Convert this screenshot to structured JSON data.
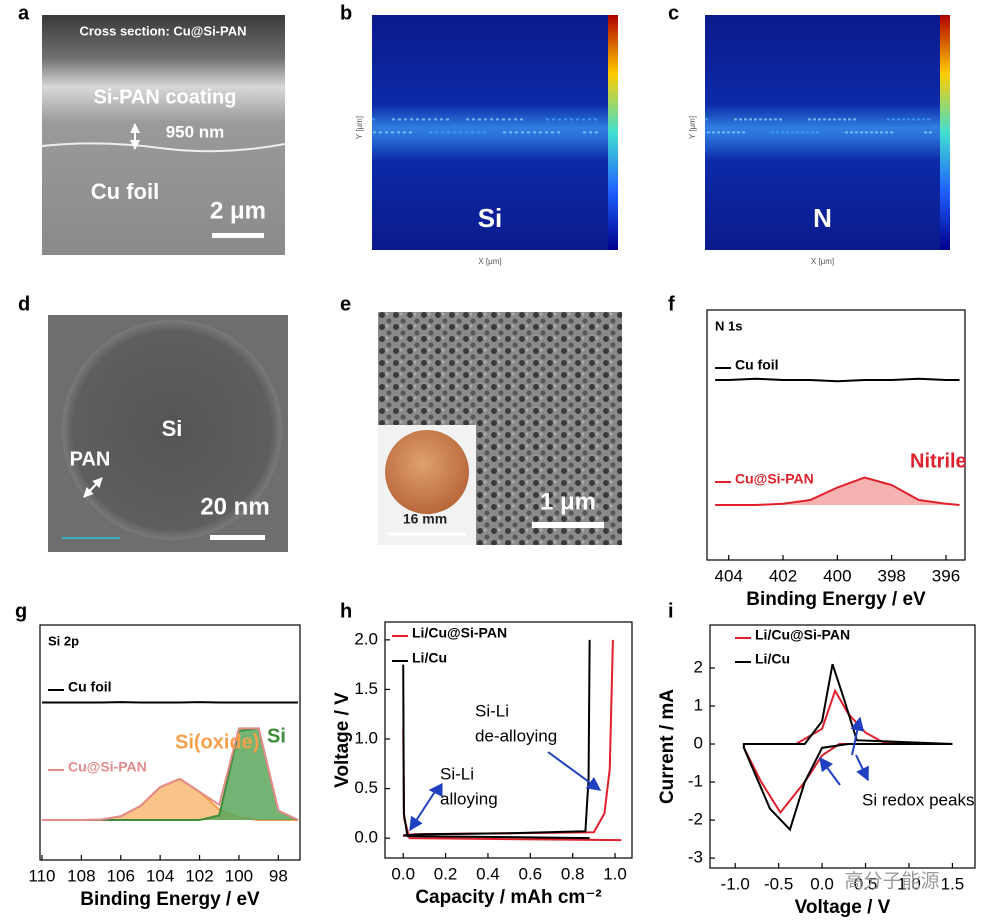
{
  "chart_data": [
    {
      "type": "image",
      "panel": "a",
      "labels": [
        "Cross section: Cu@Si-PAN",
        "Si-PAN coating",
        "950 nm",
        "Cu foil",
        "2 μm"
      ]
    },
    {
      "type": "heatmap",
      "panel": "b",
      "label": "Si",
      "xlabel": "X [μm]",
      "ylabel": "Y [μm]"
    },
    {
      "type": "heatmap",
      "panel": "c",
      "label": "N",
      "xlabel": "X [μm]",
      "ylabel": "Y [μm]"
    },
    {
      "type": "image",
      "panel": "d",
      "labels": [
        "Si",
        "PAN",
        "20 nm"
      ]
    },
    {
      "type": "image",
      "panel": "e",
      "labels": [
        "16 mm",
        "1 μm"
      ]
    },
    {
      "type": "line",
      "panel": "f",
      "title": "N 1s",
      "xlabel": "Binding Energy / eV",
      "xlim": [
        404.8,
        395.3
      ],
      "xticks": [
        404,
        402,
        400,
        398,
        396
      ],
      "ylim": [
        0,
        10
      ],
      "series": [
        {
          "name": "Cu foil",
          "color": "#000000",
          "x": [
            404.5,
            404,
            403,
            402,
            401,
            400,
            399,
            398,
            397,
            396,
            395.5
          ],
          "values": [
            7.2,
            7.2,
            7.25,
            7.2,
            7.2,
            7.15,
            7.2,
            7.2,
            7.25,
            7.2,
            7.2
          ]
        },
        {
          "name": "Cu@Si-PAN",
          "color": "#e0202a",
          "fill": "#f5a3a3",
          "x": [
            404.5,
            404,
            403,
            402,
            401,
            400,
            399,
            398,
            397,
            396,
            395.5
          ],
          "values": [
            2.2,
            2.2,
            2.2,
            2.25,
            2.4,
            2.9,
            3.3,
            3.0,
            2.4,
            2.25,
            2.2
          ]
        }
      ],
      "annotations": [
        [
          "Nitrile"
        ]
      ]
    },
    {
      "type": "line",
      "panel": "g",
      "title": "Si 2p",
      "xlabel": "Binding Energy / eV",
      "xlim": [
        110.1,
        96.9
      ],
      "xticks": [
        110,
        108,
        106,
        104,
        102,
        100,
        98
      ],
      "ylim": [
        0,
        10
      ],
      "series": [
        {
          "name": "Cu foil",
          "color": "#000000",
          "x": [
            110,
            109,
            108,
            107,
            106,
            105,
            104,
            103,
            102,
            101,
            100,
            99,
            98,
            97
          ],
          "values": [
            6.7,
            6.7,
            6.7,
            6.7,
            6.72,
            6.7,
            6.7,
            6.7,
            6.72,
            6.7,
            6.7,
            6.7,
            6.7,
            6.7
          ]
        },
        {
          "name": "Si(oxide)",
          "color": "#f5a04a",
          "fill": "#f9b873",
          "x": [
            110,
            109,
            108,
            107,
            106,
            105,
            104,
            103,
            102,
            101,
            100,
            99,
            98,
            97
          ],
          "values": [
            1.7,
            1.7,
            1.7,
            1.72,
            1.86,
            2.3,
            3.1,
            3.45,
            2.9,
            2.15,
            1.8,
            1.7,
            1.7,
            1.7
          ]
        },
        {
          "name": "Si",
          "color": "#3d8c3a",
          "fill": "#5aa65a",
          "x": [
            110,
            109,
            108,
            107,
            106,
            105,
            104,
            103,
            102,
            101,
            100,
            99,
            98,
            97
          ],
          "values": [
            1.7,
            1.7,
            1.7,
            1.7,
            1.7,
            1.7,
            1.7,
            1.7,
            1.7,
            1.9,
            5.5,
            5.6,
            2.1,
            1.7
          ]
        },
        {
          "name": "Cu@Si-PAN",
          "color": "#e58a8a",
          "x": [
            110,
            109,
            108,
            107,
            106,
            105,
            104,
            103,
            102,
            101,
            100,
            99,
            98,
            97
          ],
          "values": [
            1.7,
            1.7,
            1.7,
            1.72,
            1.86,
            2.3,
            3.1,
            3.45,
            2.9,
            2.35,
            5.6,
            5.6,
            2.1,
            1.7
          ]
        }
      ]
    },
    {
      "type": "line",
      "panel": "h",
      "xlabel": "Capacity / mAh cm⁻²",
      "ylabel": "Voltage / V",
      "xlim": [
        -0.086,
        1.08
      ],
      "ylim": [
        -0.2,
        2.18
      ],
      "xticks": [
        {
          "value": 0,
          "label": "0.0"
        },
        0.2,
        0.4,
        0.6,
        0.8,
        {
          "value": 1,
          "label": "1.0"
        }
      ],
      "yticks": [
        {
          "value": 0,
          "label": "0.0"
        },
        0.5,
        {
          "value": 1,
          "label": "1.0"
        },
        1.5,
        {
          "value": 2,
          "label": "2.0"
        }
      ],
      "series": [
        {
          "name": "Li/Cu@Si-PAN",
          "color": "#e0202a",
          "x": [
            0,
            0.004,
            0.03,
            0.5,
            1.03,
            null,
            0,
            0.05,
            0.5,
            0.9,
            0.95,
            0.975,
            0.99
          ],
          "values": [
            1.1,
            0.2,
            0.0,
            -0.01,
            -0.02,
            null,
            0.02,
            0.04,
            0.05,
            0.06,
            0.25,
            0.7,
            2.0
          ]
        },
        {
          "name": "Li/Cu",
          "color": "#000000",
          "x": [
            0,
            0.003,
            0.02,
            0.5,
            0.88,
            null,
            0,
            0.1,
            0.5,
            0.86,
            0.875,
            0.88
          ],
          "values": [
            1.75,
            0.25,
            0.02,
            0.01,
            0.0,
            null,
            0.03,
            0.04,
            0.05,
            0.07,
            0.6,
            2.0
          ]
        }
      ],
      "annotations": [
        [
          "Si-Li",
          "de-alloying"
        ],
        [
          "Si-Li",
          "alloying"
        ]
      ]
    },
    {
      "type": "line",
      "panel": "i",
      "xlabel": "Voltage / V",
      "ylabel": "Current / mA",
      "xlim": [
        -1.29,
        1.76
      ],
      "ylim": [
        -3.26,
        3.13
      ],
      "xticks": [
        {
          "value": -1,
          "label": "-1.0"
        },
        -0.5,
        {
          "value": 0,
          "label": "0.0"
        },
        0.5,
        {
          "value": 1,
          "label": "1.0"
        },
        1.5
      ],
      "yticks": [
        -3,
        -2,
        -1,
        0,
        1,
        2
      ],
      "series": [
        {
          "name": "Li/Cu@Si-PAN",
          "color": "#e0202a",
          "x": [
            1.5,
            0.2,
            0.0,
            -0.2,
            -0.48,
            -0.7,
            -0.9,
            -0.9,
            -0.3,
            0.0,
            0.15,
            0.3,
            0.5,
            0.7,
            1.5
          ],
          "values": [
            0,
            0,
            -0.3,
            -1.0,
            -1.8,
            -1.0,
            -0.1,
            0,
            0,
            0.4,
            1.4,
            0.8,
            0.3,
            0.05,
            0
          ]
        },
        {
          "name": "Li/Cu",
          "color": "#000000",
          "x": [
            1.5,
            0.3,
            0.0,
            -0.2,
            -0.37,
            -0.6,
            -0.9,
            -0.9,
            -0.5,
            -0.2,
            0.0,
            0.12,
            0.25,
            0.4,
            1.5
          ],
          "values": [
            0,
            0,
            -0.1,
            -1.0,
            -2.25,
            -1.7,
            -0.1,
            0,
            0,
            0,
            0.6,
            2.1,
            1.2,
            0.1,
            0
          ]
        }
      ],
      "annotations": [
        [
          "Si redox peaks"
        ]
      ],
      "watermark": "高分子能源"
    }
  ]
}
